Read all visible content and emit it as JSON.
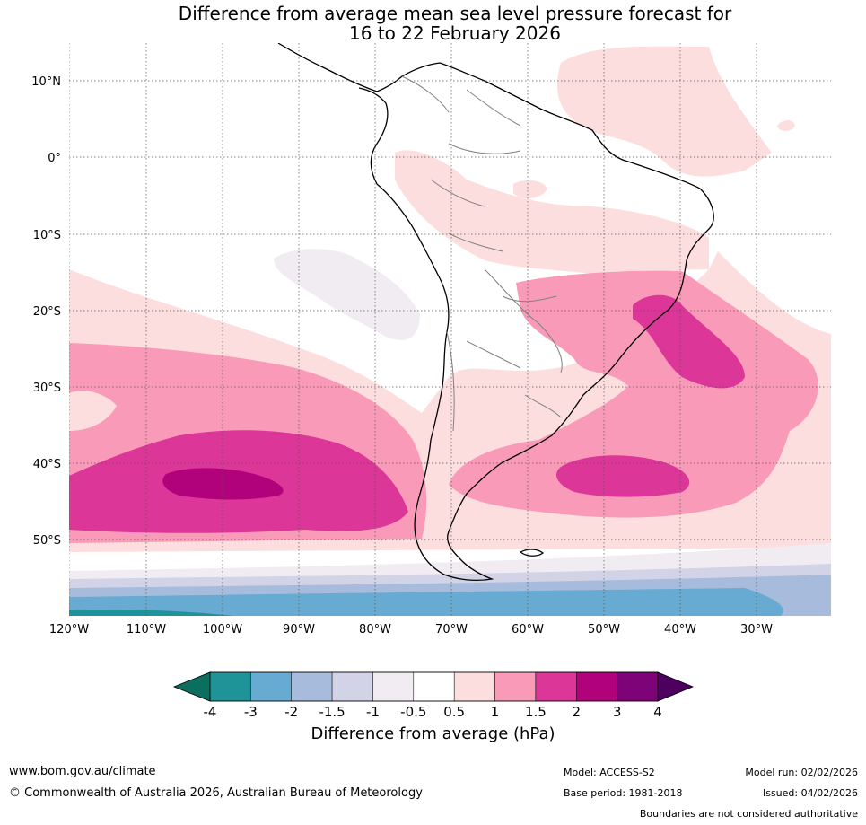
{
  "title": {
    "line1": "Difference from average mean sea level pressure forecast for",
    "line2": "16 to 22 February 2026"
  },
  "axes": {
    "lat_labels": [
      "10°N",
      "0°",
      "10°S",
      "20°S",
      "30°S",
      "40°S",
      "50°S"
    ],
    "lon_labels": [
      "120°W",
      "110°W",
      "100°W",
      "90°W",
      "80°W",
      "70°W",
      "60°W",
      "50°W",
      "40°W",
      "30°W"
    ]
  },
  "colorbar": {
    "title": "Difference from average (hPa)",
    "ticks": [
      "-4",
      "-3",
      "-2",
      "-1.5",
      "-1",
      "-0.5",
      "0.5",
      "1",
      "1.5",
      "2",
      "3",
      "4"
    ],
    "colors": [
      "#0b6e5e",
      "#1f9498",
      "#67aad2",
      "#a7bcdc",
      "#d3d3e8",
      "#f0ecf2",
      "#ffffff",
      "#fddedf",
      "#f99bb8",
      "#dc3699",
      "#b1027c",
      "#7e0278",
      "#4d0060"
    ]
  },
  "footer": {
    "url": "www.bom.gov.au/climate",
    "copyright": "© Commonwealth of Australia 2026, Australian Bureau of Meteorology",
    "model": "Model: ACCESS-S2",
    "base_period": "Base period: 1981-2018",
    "model_run": "Model run: 02/02/2026",
    "issued": "Issued: 04/02/2026",
    "disclaimer": "Boundaries are not considered authoritative"
  }
}
